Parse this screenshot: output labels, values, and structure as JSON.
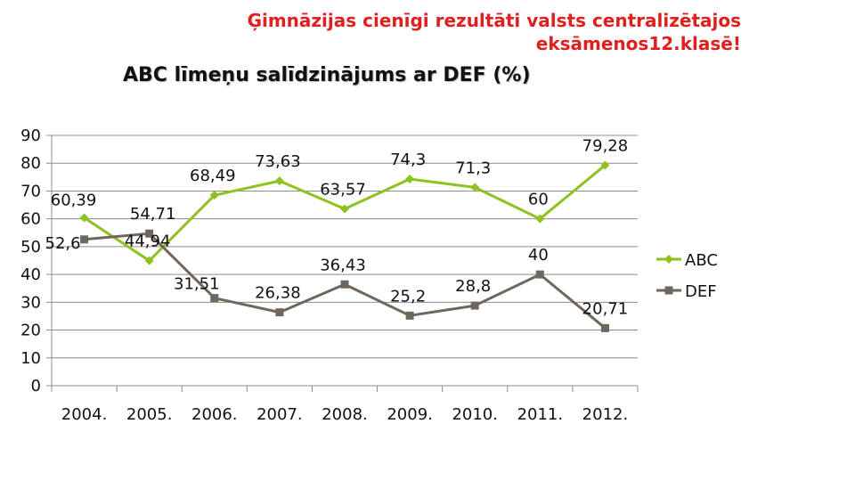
{
  "headline": {
    "line1": "Ģimnāzijas cienīgi rezultāti valsts centralizētajos",
    "line2": "eksāmenos12.klasē!"
  },
  "chart_data": {
    "type": "line",
    "title": "ABC līmeņu salīdzinājums ar DEF (%)",
    "xlabel": "",
    "ylabel": "",
    "categories": [
      "2004.",
      "2005.",
      "2006.",
      "2007.",
      "2008.",
      "2009.",
      "2010.",
      "2011.",
      "2012."
    ],
    "ylim": [
      0,
      90
    ],
    "yticks": [
      0,
      10,
      20,
      30,
      40,
      50,
      60,
      70,
      80,
      90
    ],
    "grid": true,
    "legend_position": "right",
    "series": [
      {
        "name": "ABC",
        "color": "#8dc21f",
        "marker": "diamond",
        "values": [
          60.39,
          44.94,
          68.49,
          73.63,
          63.57,
          74.3,
          71.3,
          60,
          79.28
        ],
        "labels": [
          "60,39",
          "44,94",
          "68,49",
          "73,63",
          "63,57",
          "74,3",
          "71,3",
          "60",
          "79,28"
        ]
      },
      {
        "name": "DEF",
        "color": "#6f665d",
        "marker": "square",
        "values": [
          52.6,
          54.71,
          31.51,
          26.38,
          36.43,
          25.2,
          28.8,
          40,
          20.71
        ],
        "labels": [
          "52,6",
          "54,71",
          "31,51",
          "26,38",
          "36,43",
          "25,2",
          "28,8",
          "40",
          "20,71"
        ]
      }
    ]
  }
}
